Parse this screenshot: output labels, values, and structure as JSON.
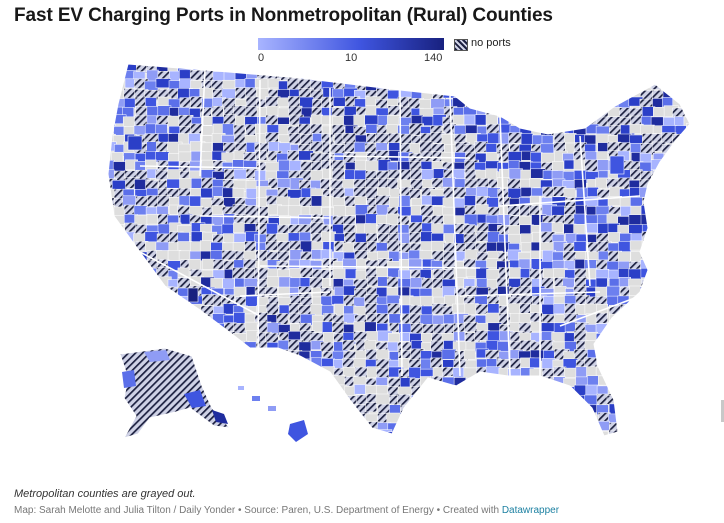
{
  "title": "Fast EV Charging Ports in Nonmetropolitan (Rural) Counties",
  "legend": {
    "ticks": [
      "0",
      "10",
      "140"
    ],
    "hatch_label": "no ports",
    "colors": {
      "low": "#a8b4ff",
      "mid": "#3f55e0",
      "high": "#18217f",
      "no_ports_hatch": "#1c2040",
      "metro_gray": "#dedede",
      "border": "#ffffff"
    }
  },
  "note": "Metropolitan counties are grayed out.",
  "credit": {
    "text": "Map: Sarah Melotte and Julia Tilton / Daily Yonder • Source: Paren, U.S. Department of Energy • Created with ",
    "link": "Datawrapper"
  }
}
